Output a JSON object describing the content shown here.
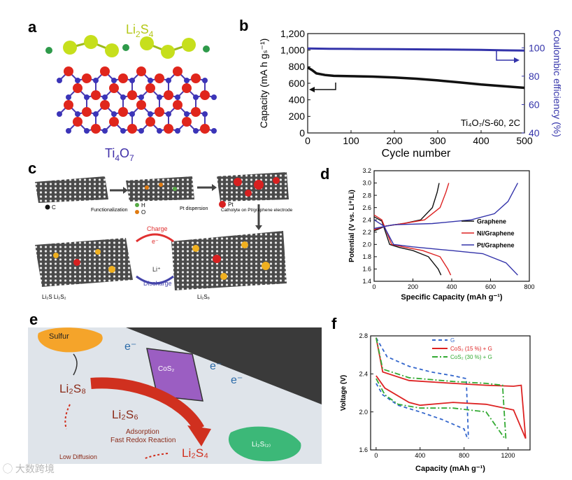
{
  "panels": {
    "a": {
      "label": "a",
      "top_molecule": "Li",
      "top_sub": "2",
      "top_tail": "S",
      "top_sub2": "4",
      "bottom_molecule": "Ti",
      "bottom_sub": "4",
      "bottom_tail": "O",
      "bottom_sub2": "7"
    },
    "b": {
      "label": "b",
      "annotation": "Ti₄O₇/S-60, 2C"
    },
    "c": {
      "label": "c",
      "legend_c": "C",
      "legend_h": "H",
      "legend_o": "O",
      "legend_pt": "Pt",
      "step1": "Functionalization",
      "step2": "Pt dispersion",
      "step3": "Catholyte on Pt/graphene electrode",
      "charge": "Charge",
      "discharge": "Discharge",
      "electron": "e⁻",
      "li_ion": "Li⁺",
      "prod_left": "Li₂S  Li₂S₂",
      "prod_right": "Li₂S₈"
    },
    "d": {
      "label": "d"
    },
    "e": {
      "label": "e",
      "sulfur": "Sulfur",
      "cos2": "CoS₂",
      "electron": "e⁻",
      "li2s8": "Li₂S₈",
      "li2s6": "Li₂S₆",
      "li2s4": "Li₂S₄",
      "li2s": "Li₂S₍₂₎",
      "adsorption": "Adsorption",
      "fast": "Fast Redox Reaction",
      "low": "Low Diffusion"
    },
    "f": {
      "label": "f"
    }
  },
  "watermark": "大数跨境",
  "chart_data": [
    {
      "id": "b",
      "type": "line",
      "xlabel": "Cycle number",
      "ylabel": "Capacity (mA h gₛ⁻¹)",
      "y2label": "Coulombic efficiency (%)",
      "xlim": [
        0,
        500
      ],
      "ylim": [
        0,
        1200
      ],
      "y2lim": [
        40,
        110
      ],
      "xticks": [
        0,
        100,
        200,
        300,
        400,
        500
      ],
      "yticks": [
        0,
        200,
        400,
        600,
        800,
        1000,
        1200
      ],
      "yticklabels": [
        "0",
        "200",
        "400",
        "600",
        "800",
        "1,000",
        "1,200"
      ],
      "y2ticks": [
        40,
        60,
        80,
        100
      ],
      "series": [
        {
          "name": "Capacity",
          "axis": "left",
          "color": "#111111",
          "x": [
            0,
            10,
            20,
            40,
            60,
            100,
            150,
            200,
            250,
            300,
            350,
            400,
            450,
            500
          ],
          "y": [
            790,
            760,
            720,
            700,
            690,
            685,
            680,
            670,
            655,
            635,
            610,
            585,
            565,
            545
          ]
        },
        {
          "name": "Coulombic efficiency",
          "axis": "right",
          "color": "#3333aa",
          "x": [
            0,
            50,
            100,
            200,
            300,
            400,
            450,
            500
          ],
          "y": [
            99.5,
            99.3,
            99.2,
            99.0,
            98.8,
            98.5,
            98.2,
            98.0
          ]
        }
      ]
    },
    {
      "id": "d",
      "type": "line",
      "xlabel": "Specific Capacity (mAh g⁻¹)",
      "ylabel": "Potential (V vs. Li⁺/Li)",
      "xlim": [
        0,
        800
      ],
      "ylim": [
        1.4,
        3.2
      ],
      "xticks": [
        0,
        200,
        400,
        600,
        800
      ],
      "yticks": [
        1.4,
        1.6,
        1.8,
        2.0,
        2.2,
        2.4,
        2.6,
        2.8,
        3.0,
        3.2
      ],
      "legend": [
        "Graphene",
        "Ni/Graphene",
        "Pt/Graphene"
      ],
      "series": [
        {
          "name": "Graphene",
          "color": "#111111",
          "charge_x": [
            0,
            60,
            150,
            240,
            300,
            325,
            335
          ],
          "charge_y": [
            2.22,
            2.3,
            2.34,
            2.4,
            2.6,
            2.85,
            3.0
          ],
          "discharge_x": [
            0,
            40,
            80,
            130,
            200,
            280,
            330,
            345
          ],
          "discharge_y": [
            2.45,
            2.38,
            2.0,
            1.95,
            1.9,
            1.8,
            1.6,
            1.5
          ]
        },
        {
          "name": "Ni/Graphene",
          "color": "#dd2222",
          "charge_x": [
            0,
            60,
            150,
            260,
            340,
            370,
            385
          ],
          "charge_y": [
            2.24,
            2.3,
            2.34,
            2.4,
            2.6,
            2.85,
            3.0
          ],
          "discharge_x": [
            0,
            40,
            90,
            150,
            250,
            340,
            380,
            395
          ],
          "discharge_y": [
            2.48,
            2.4,
            2.0,
            1.96,
            1.9,
            1.8,
            1.6,
            1.5
          ]
        },
        {
          "name": "Pt/Graphene",
          "color": "#3333aa",
          "charge_x": [
            0,
            100,
            300,
            500,
            620,
            690,
            740
          ],
          "charge_y": [
            2.26,
            2.32,
            2.34,
            2.4,
            2.5,
            2.7,
            3.0
          ],
          "discharge_x": [
            0,
            50,
            100,
            200,
            400,
            560,
            680,
            740
          ],
          "discharge_y": [
            2.4,
            2.3,
            2.0,
            1.96,
            1.9,
            1.85,
            1.7,
            1.5
          ]
        }
      ]
    },
    {
      "id": "f",
      "type": "line",
      "xlabel": "Capacity (mAh g⁻¹)",
      "ylabel": "Voltage (V)",
      "xlim": [
        -50,
        1400
      ],
      "ylim": [
        1.6,
        2.8
      ],
      "xticks": [
        0,
        400,
        800,
        1200
      ],
      "yticks": [
        1.6,
        2.0,
        2.4,
        2.8
      ],
      "legend": [
        "G",
        "CoS₂ (15 %) + G",
        "CoS₂ (30 %) + G"
      ],
      "series": [
        {
          "name": "G",
          "color": "#3366cc",
          "dash": "5,4",
          "charge_x": [
            0,
            100,
            300,
            500,
            700,
            820,
            840
          ],
          "charge_y": [
            2.78,
            2.58,
            2.48,
            2.42,
            2.38,
            2.35,
            1.72
          ],
          "discharge_x": [
            0,
            60,
            200,
            400,
            600,
            800,
            830
          ],
          "discharge_y": [
            2.3,
            2.18,
            2.07,
            2.0,
            1.92,
            1.82,
            1.72
          ]
        },
        {
          "name": "CoS₂ (15 %) + G",
          "color": "#dd2222",
          "dash": "",
          "charge_x": [
            0,
            60,
            300,
            700,
            1000,
            1250,
            1320,
            1360
          ],
          "charge_y": [
            2.78,
            2.42,
            2.33,
            2.3,
            2.28,
            2.27,
            2.28,
            1.72
          ],
          "discharge_x": [
            0,
            80,
            300,
            400,
            700,
            1000,
            1250,
            1360
          ],
          "discharge_y": [
            2.38,
            2.25,
            2.1,
            2.07,
            2.1,
            2.08,
            2.02,
            1.72
          ]
        },
        {
          "name": "CoS₂ (30 %) + G",
          "color": "#33aa33",
          "dash": "8,3,2,3",
          "charge_x": [
            0,
            60,
            300,
            700,
            1000,
            1150,
            1180
          ],
          "charge_y": [
            2.78,
            2.45,
            2.36,
            2.32,
            2.3,
            2.28,
            1.72
          ],
          "discharge_x": [
            0,
            80,
            200,
            400,
            700,
            1000,
            1170
          ],
          "discharge_y": [
            2.35,
            2.18,
            2.08,
            2.04,
            2.04,
            2.0,
            1.72
          ]
        }
      ]
    }
  ]
}
